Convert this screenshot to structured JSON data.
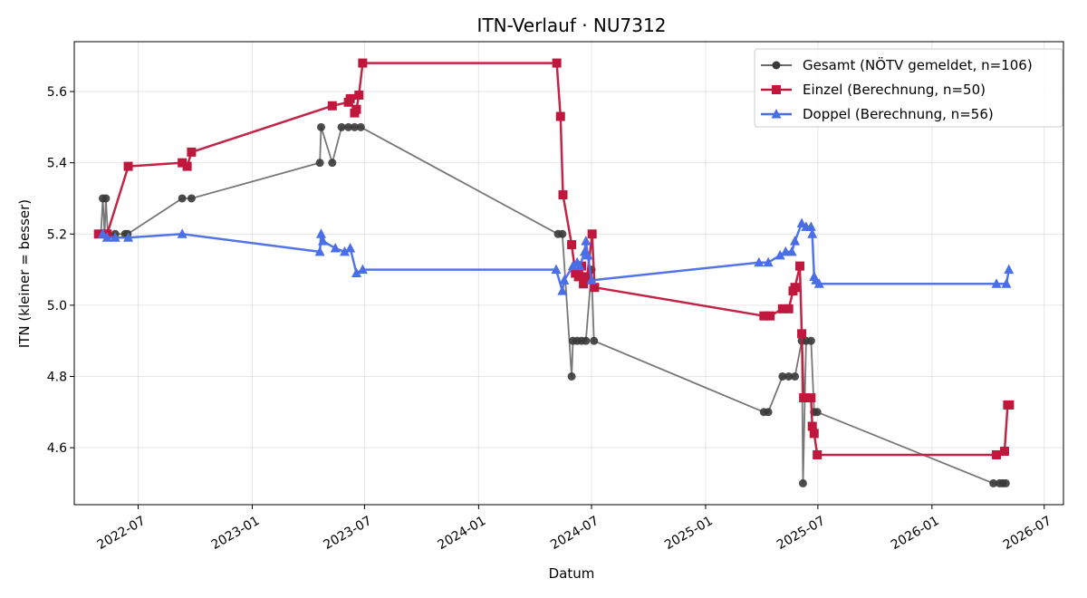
{
  "chart_data": {
    "type": "line",
    "title": "ITN-Verlauf · NU7312",
    "xlabel": "Datum",
    "ylabel": "ITN  (kleiner = besser)",
    "xlim": [
      "2022-03-20",
      "2026-08-01"
    ],
    "ylim": [
      4.44,
      5.74
    ],
    "grid": true,
    "legend_position": "top-right",
    "x_ticks": [
      "2022-07",
      "2023-01",
      "2023-07",
      "2024-01",
      "2024-07",
      "2025-01",
      "2025-07",
      "2026-01",
      "2026-07"
    ],
    "y_ticks": [
      "4.6",
      "4.8",
      "5.0",
      "5.2",
      "5.4",
      "5.6"
    ],
    "series": [
      {
        "name": "Gesamt (NÖTV gemeldet, n=106)",
        "color": "#555555",
        "marker": "circle",
        "points": [
          [
            "2022-05-02",
            5.2
          ],
          [
            "2022-05-05",
            5.3
          ],
          [
            "2022-05-08",
            5.2
          ],
          [
            "2022-05-10",
            5.3
          ],
          [
            "2022-05-13",
            5.2
          ],
          [
            "2022-05-25",
            5.2
          ],
          [
            "2022-06-10",
            5.2
          ],
          [
            "2022-06-14",
            5.2
          ],
          [
            "2022-09-10",
            5.3
          ],
          [
            "2022-09-25",
            5.3
          ],
          [
            "2023-04-20",
            5.4
          ],
          [
            "2023-04-22",
            5.5
          ],
          [
            "2023-05-10",
            5.4
          ],
          [
            "2023-05-25",
            5.5
          ],
          [
            "2023-06-05",
            5.5
          ],
          [
            "2023-06-15",
            5.5
          ],
          [
            "2023-06-25",
            5.5
          ],
          [
            "2024-05-08",
            5.2
          ],
          [
            "2024-05-15",
            5.2
          ],
          [
            "2024-05-30",
            4.8
          ],
          [
            "2024-06-01",
            4.9
          ],
          [
            "2024-06-08",
            4.9
          ],
          [
            "2024-06-15",
            4.9
          ],
          [
            "2024-06-22",
            4.9
          ],
          [
            "2024-07-01",
            5.1
          ],
          [
            "2024-07-05",
            4.9
          ],
          [
            "2025-04-05",
            4.7
          ],
          [
            "2025-04-12",
            4.7
          ],
          [
            "2025-05-05",
            4.8
          ],
          [
            "2025-05-15",
            4.8
          ],
          [
            "2025-05-25",
            4.8
          ],
          [
            "2025-06-05",
            4.9
          ],
          [
            "2025-06-07",
            4.5
          ],
          [
            "2025-06-12",
            4.9
          ],
          [
            "2025-06-20",
            4.9
          ],
          [
            "2025-06-25",
            4.7
          ],
          [
            "2025-06-30",
            4.7
          ],
          [
            "2026-04-10",
            4.5
          ],
          [
            "2026-04-20",
            4.5
          ],
          [
            "2026-04-25",
            4.5
          ],
          [
            "2026-04-30",
            4.5
          ]
        ]
      },
      {
        "name": "Einzel (Berechnung, n=50)",
        "color": "#c0173d",
        "marker": "square",
        "points": [
          [
            "2022-04-28",
            5.2
          ],
          [
            "2022-05-12",
            5.2
          ],
          [
            "2022-06-15",
            5.39
          ],
          [
            "2022-09-10",
            5.4
          ],
          [
            "2022-09-18",
            5.39
          ],
          [
            "2022-09-25",
            5.43
          ],
          [
            "2023-05-10",
            5.56
          ],
          [
            "2023-06-05",
            5.57
          ],
          [
            "2023-06-08",
            5.58
          ],
          [
            "2023-06-15",
            5.54
          ],
          [
            "2023-06-18",
            5.55
          ],
          [
            "2023-06-22",
            5.59
          ],
          [
            "2023-06-28",
            5.68
          ],
          [
            "2024-05-06",
            5.68
          ],
          [
            "2024-05-12",
            5.53
          ],
          [
            "2024-05-16",
            5.31
          ],
          [
            "2024-05-30",
            5.17
          ],
          [
            "2024-06-05",
            5.09
          ],
          [
            "2024-06-10",
            5.08
          ],
          [
            "2024-06-15",
            5.11
          ],
          [
            "2024-06-18",
            5.06
          ],
          [
            "2024-06-24",
            5.08
          ],
          [
            "2024-07-02",
            5.2
          ],
          [
            "2024-07-06",
            5.05
          ],
          [
            "2025-04-05",
            4.97
          ],
          [
            "2025-04-15",
            4.97
          ],
          [
            "2025-05-05",
            4.99
          ],
          [
            "2025-05-15",
            4.99
          ],
          [
            "2025-05-22",
            5.04
          ],
          [
            "2025-05-25",
            5.05
          ],
          [
            "2025-06-02",
            5.11
          ],
          [
            "2025-06-05",
            4.92
          ],
          [
            "2025-06-08",
            4.74
          ],
          [
            "2025-06-20",
            4.74
          ],
          [
            "2025-06-22",
            4.66
          ],
          [
            "2025-06-25",
            4.64
          ],
          [
            "2025-06-30",
            4.58
          ],
          [
            "2026-04-15",
            4.58
          ],
          [
            "2026-04-28",
            4.59
          ],
          [
            "2026-05-03",
            4.72
          ],
          [
            "2026-05-06",
            4.72
          ]
        ]
      },
      {
        "name": "Doppel (Berechnung, n=56)",
        "color": "#4a6de8",
        "marker": "triangle",
        "points": [
          [
            "2022-05-05",
            5.2
          ],
          [
            "2022-05-12",
            5.19
          ],
          [
            "2022-05-25",
            5.19
          ],
          [
            "2022-06-15",
            5.19
          ],
          [
            "2022-09-10",
            5.2
          ],
          [
            "2023-04-20",
            5.15
          ],
          [
            "2023-04-22",
            5.2
          ],
          [
            "2023-04-25",
            5.18
          ],
          [
            "2023-05-15",
            5.16
          ],
          [
            "2023-05-30",
            5.15
          ],
          [
            "2023-06-08",
            5.16
          ],
          [
            "2023-06-18",
            5.09
          ],
          [
            "2023-06-28",
            5.1
          ],
          [
            "2024-05-05",
            5.1
          ],
          [
            "2024-05-15",
            5.04
          ],
          [
            "2024-05-18",
            5.07
          ],
          [
            "2024-06-01",
            5.11
          ],
          [
            "2024-06-08",
            5.12
          ],
          [
            "2024-06-12",
            5.11
          ],
          [
            "2024-06-20",
            5.15
          ],
          [
            "2024-06-22",
            5.18
          ],
          [
            "2024-06-25",
            5.14
          ],
          [
            "2024-07-01",
            5.07
          ],
          [
            "2025-03-28",
            5.12
          ],
          [
            "2025-04-12",
            5.12
          ],
          [
            "2025-05-01",
            5.14
          ],
          [
            "2025-05-10",
            5.15
          ],
          [
            "2025-05-20",
            5.15
          ],
          [
            "2025-05-25",
            5.18
          ],
          [
            "2025-06-05",
            5.23
          ],
          [
            "2025-06-12",
            5.22
          ],
          [
            "2025-06-20",
            5.22
          ],
          [
            "2025-06-22",
            5.2
          ],
          [
            "2025-06-25",
            5.08
          ],
          [
            "2025-06-28",
            5.07
          ],
          [
            "2025-07-03",
            5.06
          ],
          [
            "2026-04-15",
            5.06
          ],
          [
            "2026-05-01",
            5.06
          ],
          [
            "2026-05-05",
            5.1
          ]
        ]
      }
    ]
  }
}
